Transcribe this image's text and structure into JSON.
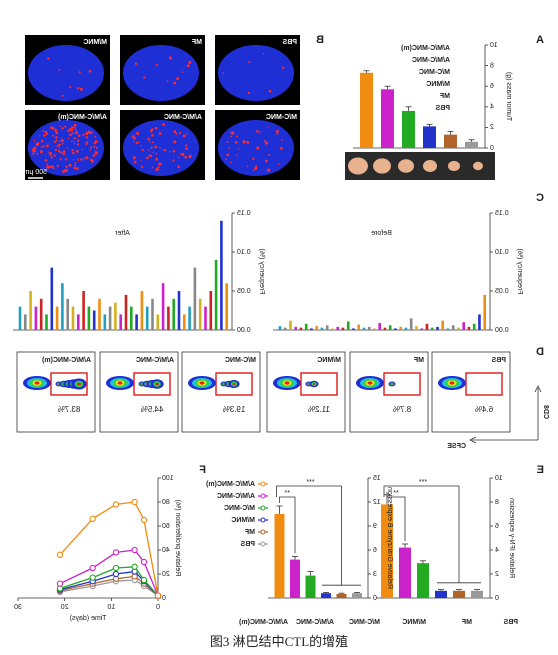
{
  "caption": "图3 淋巴结中CTL的增殖",
  "groups": [
    "PBS",
    "MF",
    "M/MNC",
    "M/C-MNC",
    "A/M/C-MNC",
    "A/M/C-MNC(m)"
  ],
  "colors": [
    "#9a9a9a",
    "#b0642a",
    "#2233cc",
    "#22aa22",
    "#cc22cc",
    "#f08c10"
  ],
  "panel_b": {
    "panel": "B",
    "images": [
      "PBS",
      "MF",
      "M/MNC",
      "M/C-MNC",
      "A/M/C-MNC",
      "A/M/C-MNC(m)"
    ],
    "scale_bar": "500 μm"
  },
  "panel_d": {
    "panel": "D",
    "y_label": "CD8",
    "x_label": "CFSE",
    "boxes": [
      "PBS",
      "MF",
      "M/MNC",
      "M/C-MNC",
      "A/M/C-MNC",
      "A/M/C-MNC(m)"
    ],
    "percentages": [
      "6.4%",
      "8.7%",
      "11.2%",
      "19.3%",
      "44.5%",
      "83.7%"
    ]
  },
  "chart_data": [
    {
      "type": "bar",
      "panel": "A",
      "y_label": "Tumor mass (g)",
      "values": [
        0.6,
        1.3,
        2.1,
        3.6,
        5.7,
        7.3
      ],
      "errors": [
        0.2,
        0.3,
        0.2,
        0.4,
        0.3,
        0.2
      ],
      "ylim": [
        0,
        10
      ],
      "yticks": [
        0,
        2,
        4,
        6,
        8,
        10
      ]
    },
    {
      "type": "bar",
      "panel": "C",
      "title": "Before",
      "y_label": "Frequency (%)",
      "palette": [
        "#f08c10",
        "#2233cc",
        "#22aa22",
        "#cc2222",
        "#cc22cc",
        "#d4b020",
        "#888888",
        "#20a0c0"
      ],
      "values": [
        0.045,
        0.02,
        0.008,
        0.004,
        0.01,
        0.003,
        0.006,
        0.002,
        0.012,
        0.004,
        0.003,
        0.008,
        0.002,
        0.005,
        0.015,
        0.003,
        0.004,
        0.002,
        0.006,
        0.003,
        0.009,
        0.002,
        0.004,
        0.003,
        0.007,
        0.002,
        0.011,
        0.003,
        0.004,
        0.002,
        0.006,
        0.003,
        0.005,
        0.002,
        0.008,
        0.003,
        0.004,
        0.012,
        0.003,
        0.005
      ],
      "ylim": [
        0,
        0.15
      ],
      "yticks": [
        {
          "value": 0,
          "label": "0.00"
        },
        {
          "value": 0.05,
          "label": "0.05"
        },
        {
          "value": 0.1,
          "label": "0.10"
        },
        {
          "value": 0.15,
          "label": "0.15"
        }
      ]
    },
    {
      "type": "bar",
      "title": "After",
      "y_label": "Frequency (%)",
      "palette": [
        "#f08c10",
        "#2233cc",
        "#22aa22",
        "#cc2222",
        "#cc22cc",
        "#d4b020",
        "#888888",
        "#20a0c0"
      ],
      "values": [
        0.06,
        0.14,
        0.09,
        0.05,
        0.03,
        0.04,
        0.08,
        0.03,
        0.02,
        0.05,
        0.04,
        0.03,
        0.06,
        0.02,
        0.04,
        0.03,
        0.05,
        0.02,
        0.03,
        0.045,
        0.02,
        0.035,
        0.03,
        0.02,
        0.04,
        0.025,
        0.03,
        0.05,
        0.02,
        0.03,
        0.04,
        0.06,
        0.03,
        0.08,
        0.02,
        0.04,
        0.03,
        0.05,
        0.02,
        0.03
      ],
      "ylim": [
        0,
        0.15
      ],
      "yticks": [
        {
          "value": 0,
          "label": "0.00"
        },
        {
          "value": 0.05,
          "label": "0.05"
        },
        {
          "value": 0.1,
          "label": "0.10"
        },
        {
          "value": 0.15,
          "label": "0.15"
        }
      ]
    },
    {
      "type": "bar",
      "panel": "E",
      "y_label": "Relative IFN-γ expression",
      "values": [
        0.6,
        0.6,
        0.6,
        2.9,
        4.2,
        7.8
      ],
      "errors": [
        0.1,
        0.1,
        0.1,
        0.2,
        0.3,
        0.8
      ],
      "ylim": [
        0,
        10
      ],
      "yticks": [
        0,
        2,
        4,
        6,
        8,
        10
      ],
      "annotations": [
        "**",
        "***"
      ]
    },
    {
      "type": "bar",
      "y_label": "Relative Granzyme B expression",
      "values": [
        0.6,
        0.5,
        0.6,
        2.8,
        4.8,
        10.5
      ],
      "errors": [
        0.1,
        0.1,
        0.1,
        0.5,
        0.4,
        1.0
      ],
      "ylim": [
        0,
        15
      ],
      "yticks": [
        0,
        3,
        6,
        9,
        12,
        15
      ],
      "annotations": [
        "**",
        "***"
      ]
    },
    {
      "type": "line",
      "panel": "F",
      "x_label": "Time (days)",
      "y_label": "Relative proliferation (%)",
      "x": [
        0,
        3,
        5,
        9,
        14,
        21
      ],
      "series": [
        {
          "name": "PBS",
          "color": "#9a9a9a",
          "values": [
            2,
            10,
            15,
            14,
            10,
            5
          ]
        },
        {
          "name": "MF",
          "color": "#b0642a",
          "values": [
            2,
            12,
            18,
            16,
            12,
            6
          ]
        },
        {
          "name": "M/MNC",
          "color": "#2233cc",
          "values": [
            2,
            14,
            22,
            20,
            14,
            7
          ]
        },
        {
          "name": "M/C-MNC",
          "color": "#22aa22",
          "values": [
            2,
            15,
            26,
            25,
            17,
            8
          ]
        },
        {
          "name": "A/M/C-MNC",
          "color": "#cc22cc",
          "values": [
            2,
            30,
            40,
            38,
            25,
            12
          ]
        },
        {
          "name": "A/M/C-MNC(m)",
          "color": "#f08c10",
          "values": [
            2,
            65,
            80,
            78,
            66,
            36
          ]
        }
      ],
      "xlim": [
        0,
        30
      ],
      "xticks": [
        0,
        10,
        20,
        30
      ],
      "ylim": [
        0,
        100
      ],
      "yticks": [
        0,
        20,
        40,
        60,
        80,
        100
      ]
    }
  ]
}
